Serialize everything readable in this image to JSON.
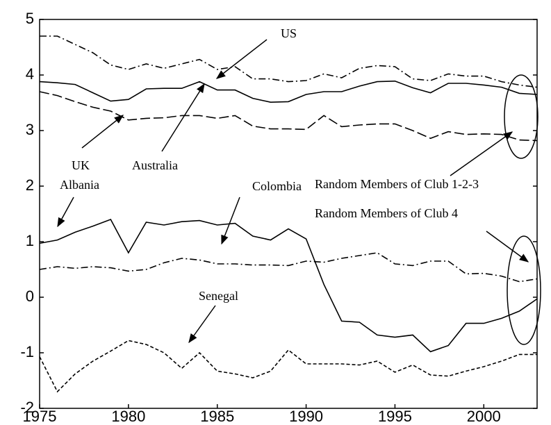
{
  "chart_data": {
    "type": "line",
    "x": [
      1975,
      1976,
      1977,
      1978,
      1979,
      1980,
      1981,
      1982,
      1983,
      1984,
      1985,
      1986,
      1987,
      1988,
      1989,
      1990,
      1991,
      1992,
      1993,
      1994,
      1995,
      1996,
      1997,
      1998,
      1999,
      2000,
      2001,
      2002,
      2003
    ],
    "xlim": [
      1975,
      2003
    ],
    "xticks": [
      1975,
      1980,
      1985,
      1990,
      1995,
      2000
    ],
    "ylim": [
      -2,
      5
    ],
    "yticks": [
      -2,
      -1,
      0,
      1,
      2,
      3,
      4,
      5
    ],
    "annotations": [
      "US",
      "UK",
      "Albania",
      "Australia",
      "Colombia",
      "Random Members of Club 1-2-3",
      "Random Members of Club 4",
      "Senegal"
    ],
    "series": [
      {
        "name": "US",
        "color": "#000000",
        "style": "dashdot",
        "values": [
          4.7,
          4.7,
          4.55,
          4.4,
          4.18,
          4.1,
          4.2,
          4.12,
          4.2,
          4.28,
          4.1,
          4.15,
          3.93,
          3.93,
          3.88,
          3.9,
          4.02,
          3.95,
          4.12,
          4.17,
          4.15,
          3.93,
          3.9,
          4.02,
          3.98,
          3.98,
          3.88,
          3.82,
          3.78
        ]
      },
      {
        "name": "Australia",
        "color": "#000000",
        "style": "solid",
        "values": [
          3.88,
          3.86,
          3.83,
          3.68,
          3.53,
          3.56,
          3.75,
          3.76,
          3.76,
          3.88,
          3.73,
          3.73,
          3.58,
          3.51,
          3.52,
          3.65,
          3.7,
          3.7,
          3.8,
          3.88,
          3.89,
          3.77,
          3.68,
          3.85,
          3.85,
          3.82,
          3.78,
          3.67,
          3.65
        ]
      },
      {
        "name": "UK",
        "color": "#000000",
        "style": "longdash",
        "values": [
          3.7,
          3.63,
          3.52,
          3.42,
          3.35,
          3.19,
          3.22,
          3.23,
          3.27,
          3.27,
          3.22,
          3.27,
          3.08,
          3.03,
          3.03,
          3.02,
          3.27,
          3.07,
          3.1,
          3.12,
          3.12,
          3.0,
          2.86,
          2.98,
          2.93,
          2.94,
          2.93,
          2.83,
          2.82
        ]
      },
      {
        "name": "Albania",
        "color": "#000000",
        "style": "solid",
        "values": [
          0.97,
          1.03,
          1.17,
          1.28,
          1.4,
          0.8,
          1.35,
          1.3,
          1.36,
          1.38,
          1.3,
          1.33,
          1.1,
          1.03,
          1.23,
          1.05,
          0.23,
          -0.43,
          -0.45,
          -0.68,
          -0.72,
          -0.68,
          -0.98,
          -0.87,
          -0.47,
          -0.47,
          -0.38,
          -0.25,
          -0.03
        ]
      },
      {
        "name": "Colombia",
        "color": "#000000",
        "style": "dashdot",
        "values": [
          0.5,
          0.55,
          0.52,
          0.55,
          0.53,
          0.47,
          0.5,
          0.62,
          0.7,
          0.67,
          0.6,
          0.6,
          0.58,
          0.58,
          0.57,
          0.65,
          0.63,
          0.7,
          0.75,
          0.8,
          0.6,
          0.57,
          0.65,
          0.65,
          0.42,
          0.43,
          0.38,
          0.28,
          0.33
        ]
      },
      {
        "name": "Senegal",
        "color": "#000000",
        "style": "shortdash",
        "values": [
          -1.07,
          -1.7,
          -1.38,
          -1.15,
          -0.97,
          -0.78,
          -0.85,
          -1.0,
          -1.28,
          -1.0,
          -1.33,
          -1.38,
          -1.45,
          -1.33,
          -0.95,
          -1.2,
          -1.2,
          -1.2,
          -1.22,
          -1.15,
          -1.35,
          -1.22,
          -1.4,
          -1.42,
          -1.33,
          -1.25,
          -1.15,
          -1.03,
          -1.03
        ]
      }
    ]
  }
}
